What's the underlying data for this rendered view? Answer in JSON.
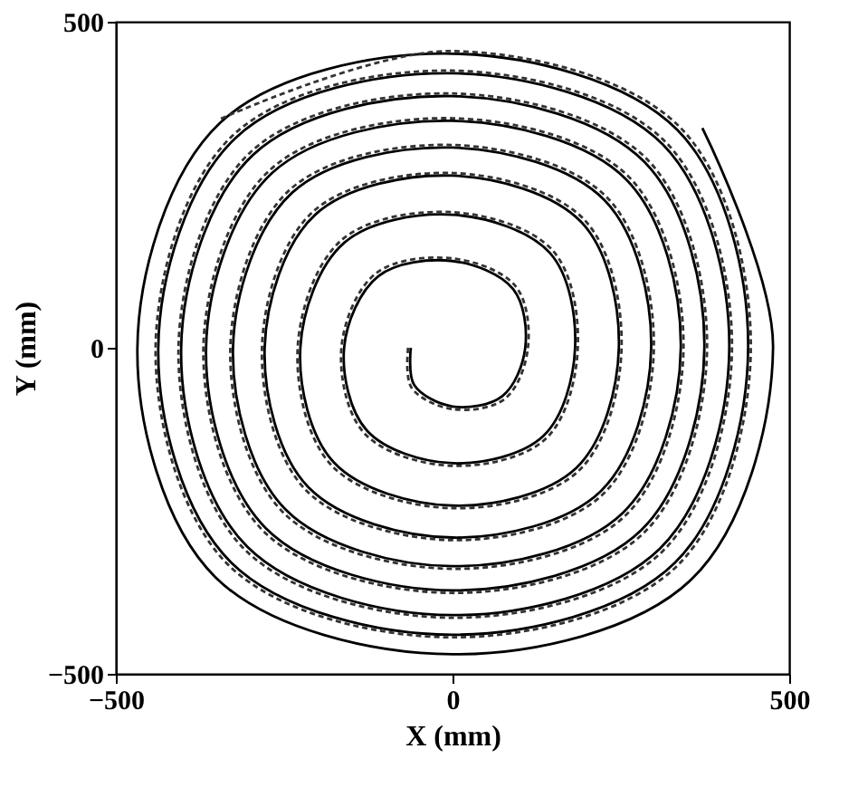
{
  "chart_data": {
    "type": "line",
    "xlabel": "X (mm)",
    "ylabel": "Y (mm)",
    "xlim": [
      -500,
      500
    ],
    "xticks": [
      -500,
      0,
      500
    ],
    "ylim": [
      -500,
      500
    ],
    "yticks": [
      -500,
      0,
      500
    ],
    "grid": false,
    "series": [
      {
        "color": "#000000",
        "line_style": "solid",
        "x": [
          -62,
          -57,
          0,
          74,
          108,
          90,
          0,
          -110,
          -161,
          -127,
          0,
          135,
          182,
          145,
          0,
          -161,
          -226,
          -176,
          0,
          184,
          247,
          192,
          0,
          -204,
          -279,
          -214,
          0,
          220,
          295,
          226,
          0,
          -238,
          -326,
          -248,
          0,
          253,
          339,
          258,
          0,
          -268,
          -366,
          -277,
          0,
          280,
          374,
          285,
          0,
          -296,
          -403,
          -305,
          0,
          308,
          411,
          312,
          0,
          -322,
          -437,
          -329,
          0,
          330,
          439,
          334,
          0,
          -345,
          -468,
          -352,
          0,
          355,
          476,
          371
        ],
        "values": [
          0,
          -57,
          -90,
          -74,
          0,
          90,
          133,
          110,
          0,
          -127,
          -177,
          -135,
          0,
          145,
          204,
          161,
          0,
          -176,
          -242,
          -184,
          0,
          192,
          264,
          204,
          0,
          -214,
          -291,
          -220,
          0,
          226,
          307,
          238,
          0,
          -248,
          -335,
          -253,
          0,
          258,
          348,
          268,
          0,
          -277,
          -372,
          -280,
          0,
          285,
          386,
          296,
          0,
          -305,
          -410,
          -308,
          0,
          312,
          421,
          322,
          0,
          -329,
          -440,
          -330,
          0,
          334,
          451,
          345,
          0,
          -352,
          -470,
          -355,
          0,
          337
        ]
      },
      {
        "color": "#333333",
        "line_style": "dashed",
        "x": [
          -66,
          -61,
          0,
          78,
          112,
          94,
          0,
          -114,
          -165,
          -131,
          0,
          139,
          186,
          149,
          0,
          -165,
          -230,
          -180,
          0,
          188,
          251,
          196,
          0,
          -208,
          -283,
          -218,
          0,
          224,
          299,
          230,
          0,
          -242,
          -330,
          -252,
          0,
          257,
          343,
          262,
          0,
          -272,
          -370,
          -281,
          0,
          284,
          378,
          289,
          0,
          -300,
          -407,
          -309,
          0,
          312,
          415,
          316,
          0,
          -326,
          -441,
          -333,
          0,
          334,
          443,
          338,
          0,
          -349
        ],
        "values": [
          0,
          -61,
          -94,
          -78,
          0,
          94,
          137,
          114,
          0,
          -131,
          -181,
          -139,
          0,
          149,
          208,
          165,
          0,
          -180,
          -246,
          -188,
          0,
          196,
          268,
          208,
          0,
          -218,
          -295,
          -224,
          0,
          230,
          311,
          242,
          0,
          -252,
          -339,
          -257,
          0,
          262,
          352,
          272,
          0,
          -281,
          -376,
          -284,
          0,
          289,
          390,
          300,
          0,
          -309,
          -414,
          -312,
          0,
          316,
          425,
          326,
          0,
          -333,
          -444,
          -334,
          0,
          338,
          455,
          349
        ]
      }
    ]
  }
}
